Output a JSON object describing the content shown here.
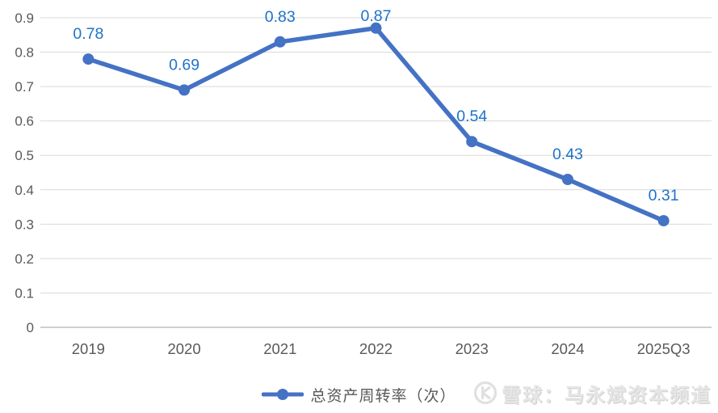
{
  "chart_data": {
    "type": "line",
    "title": "",
    "xlabel": "",
    "ylabel": "",
    "categories": [
      "2019",
      "2020",
      "2021",
      "2022",
      "2023",
      "2024",
      "2025Q3"
    ],
    "series": [
      {
        "name": "总资产周转率（次）",
        "values": [
          0.78,
          0.69,
          0.83,
          0.87,
          0.54,
          0.43,
          0.31
        ]
      }
    ],
    "data_labels": [
      "0.78",
      "0.69",
      "0.83",
      "0.87",
      "0.54",
      "0.43",
      "0.31"
    ],
    "y_ticks": [
      "0",
      "0.1",
      "0.2",
      "0.3",
      "0.4",
      "0.5",
      "0.6",
      "0.7",
      "0.8",
      "0.9"
    ],
    "ylim": [
      0,
      0.9
    ],
    "grid": true,
    "legend_position": "bottom",
    "colors": {
      "line": "#4472C4",
      "marker": "#4472C4",
      "data_label": "#1E73C8",
      "axis_text": "#595959",
      "gridline": "#D9D9D9",
      "axis_line": "#BFBFBF"
    }
  },
  "legend": {
    "label": "总资产周转率（次）"
  },
  "watermark": {
    "logo": "xueqiu-logo",
    "text": "雪球：马永斌资本频道"
  }
}
